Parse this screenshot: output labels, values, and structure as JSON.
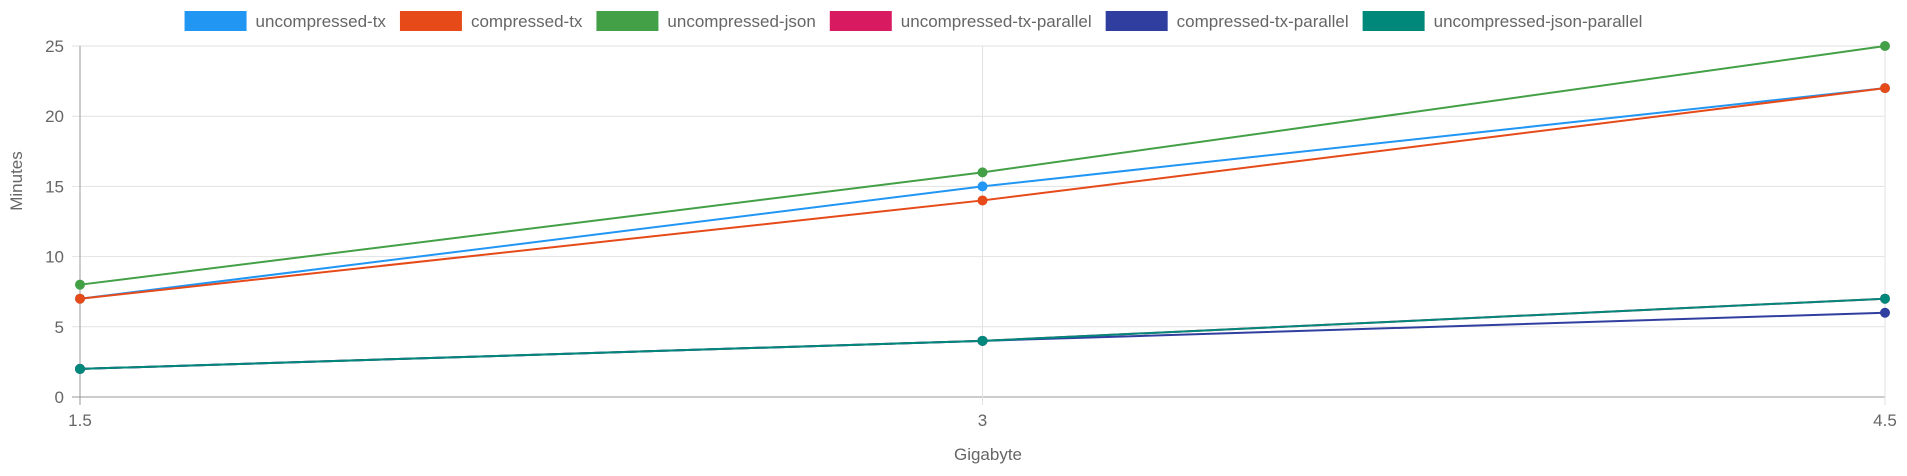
{
  "chart_data": {
    "type": "line",
    "x": [
      1.5,
      3,
      4.5
    ],
    "x_tick_labels": [
      "1.5",
      "3",
      "4.5"
    ],
    "y_ticks": [
      0,
      5,
      10,
      15,
      20,
      25
    ],
    "ylim": [
      0,
      25
    ],
    "xlim": [
      1.5,
      4.5
    ],
    "xlabel": "Gigabyte",
    "ylabel": "Minutes",
    "grid": true,
    "legend_position": "top",
    "series": [
      {
        "name": "uncompressed-tx",
        "color": "#2196F3",
        "values": [
          7,
          15,
          22
        ]
      },
      {
        "name": "compressed-tx",
        "color": "#E64A19",
        "values": [
          7,
          14,
          22
        ]
      },
      {
        "name": "uncompressed-json",
        "color": "#43A047",
        "values": [
          8,
          16,
          25
        ]
      },
      {
        "name": "uncompressed-tx-parallel",
        "color": "#D81B60",
        "values": [
          2,
          4,
          7
        ]
      },
      {
        "name": "compressed-tx-parallel",
        "color": "#303F9F",
        "values": [
          2,
          4,
          6
        ]
      },
      {
        "name": "uncompressed-json-parallel",
        "color": "#00897B",
        "values": [
          2,
          4,
          7
        ]
      }
    ]
  }
}
